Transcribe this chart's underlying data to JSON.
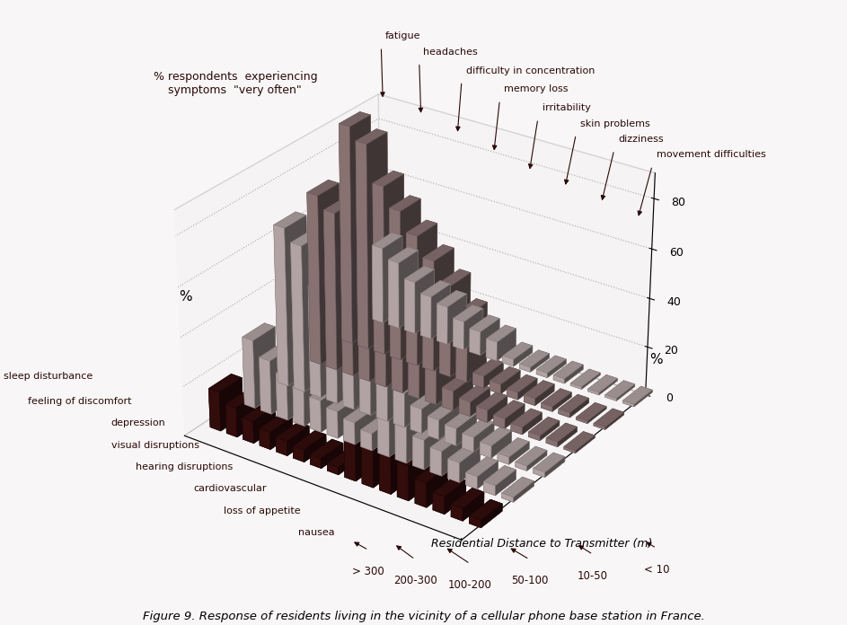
{
  "symptoms_front": [
    "sleep disturbance",
    "feeling of discomfort",
    "depression",
    "visual disruptions",
    "hearing disruptions",
    "cardiovascular",
    "loss of appetite",
    "nausea"
  ],
  "symptoms_back": [
    "fatigue",
    "headaches",
    "difficulty in concentration",
    "memory loss",
    "irritability",
    "skin problems",
    "dizziness",
    "movement difficulties"
  ],
  "distances": [
    "> 300",
    "200-300",
    "100-200",
    "50-100",
    "10-50",
    "< 10"
  ],
  "values": {
    "fatigue": [
      16,
      28,
      65,
      70,
      90,
      32
    ],
    "headaches": [
      12,
      22,
      60,
      65,
      85,
      28
    ],
    "difficulty in concentration": [
      9,
      18,
      45,
      55,
      70,
      22
    ],
    "memory loss": [
      7,
      15,
      37,
      47,
      62,
      18
    ],
    "irritability": [
      6,
      13,
      30,
      40,
      54,
      16
    ],
    "skin problems": [
      5,
      11,
      25,
      34,
      46,
      12
    ],
    "dizziness": [
      4,
      9,
      20,
      28,
      38,
      10
    ],
    "movement difficulties": [
      3,
      7,
      14,
      20,
      28,
      8
    ],
    "sleep disturbance": [
      30,
      22,
      10,
      8,
      5,
      3
    ],
    "feeling of discomfort": [
      22,
      16,
      8,
      6,
      4,
      2
    ],
    "depression": [
      18,
      12,
      7,
      5,
      3,
      2
    ],
    "visual disruptions": [
      14,
      10,
      6,
      4,
      3,
      2
    ],
    "hearing disruptions": [
      10,
      8,
      5,
      3,
      2,
      1
    ],
    "cardiovascular": [
      7,
      5,
      3,
      2,
      2,
      1
    ],
    "loss of appetite": [
      5,
      4,
      2,
      2,
      1,
      1
    ],
    "nausea": [
      3,
      2,
      2,
      1,
      1,
      1
    ]
  },
  "dist_colors": {
    "> 300": "#3a0e0e",
    "200-300": "#c8b8b8",
    "100-200": "#c8b8b8",
    "50-100": "#9a8080",
    "10-50": "#9a8080",
    "< 10": "#c8b8b8"
  },
  "dist_edge_colors": {
    "> 300": "#1a0505",
    "200-300": "#8a7a7a",
    "100-200": "#8a7a7a",
    "50-100": "#6a5a5a",
    "10-50": "#6a5a5a",
    "< 10": "#8a7a7a"
  },
  "title_left": "% respondents  experiencing\n    symptoms  \"very often\"",
  "ylabel_left": "%",
  "ylabel_right": "%",
  "xlabel": "Residential Distance to Transmitter (m)",
  "caption": "Figure 9. Response of residents living in the vicinity of a cellular phone base station in France.",
  "bg_color": "#f8f6f6",
  "elev": 28,
  "azim": -55
}
